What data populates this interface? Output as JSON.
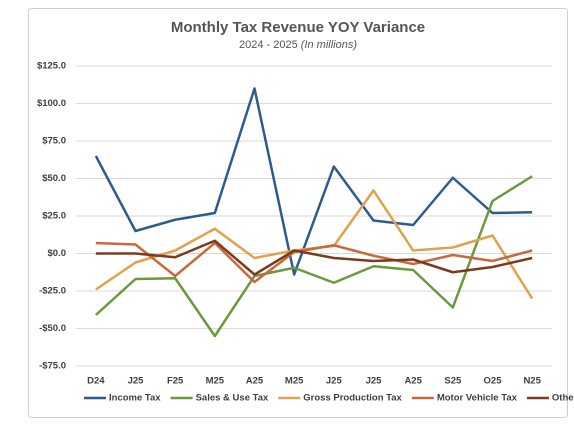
{
  "chart_data": {
    "type": "line",
    "title": "Monthly Tax Revenue YOY Variance",
    "subtitle": "2024 - 2025",
    "subtitle_note": "(In millions)",
    "categories": [
      "D24",
      "J25",
      "F25",
      "M25",
      "A25",
      "M25",
      "J25",
      "J25",
      "A25",
      "S25",
      "O25",
      "N25"
    ],
    "series": [
      {
        "name": "Income Tax",
        "color": "#2e5b8f",
        "values": [
          65,
          15,
          22.5,
          27,
          110,
          -14,
          58,
          22,
          19,
          50.5,
          27,
          27.5
        ]
      },
      {
        "name": "Sales & Use Tax",
        "color": "#6a9a3d",
        "values": [
          -41,
          -17,
          -16.5,
          -55,
          -15,
          -9.5,
          -19.5,
          -8.5,
          -11,
          -36,
          35,
          51.5
        ]
      },
      {
        "name": "Gross Production Tax",
        "color": "#e0a24a",
        "values": [
          -24,
          -6,
          2,
          16.5,
          -3,
          2,
          5,
          42,
          2,
          4,
          12,
          -30
        ]
      },
      {
        "name": "Motor Vehicle Tax",
        "color": "#c8693a",
        "values": [
          7,
          6,
          -15,
          7,
          -19,
          1,
          5.5,
          -1.5,
          -7,
          -1,
          -5,
          2
        ]
      },
      {
        "name": "Other",
        "color": "#7a3b1f",
        "values": [
          0,
          0,
          -2.5,
          8.5,
          -14,
          2,
          -3,
          -5,
          -4,
          -12.5,
          -9,
          -3
        ]
      }
    ],
    "ylim": [
      -75,
      125
    ],
    "yticks": [
      {
        "value": -75,
        "label": "-$75.0"
      },
      {
        "value": -50,
        "label": "-$50.0"
      },
      {
        "value": -25,
        "label": "-$25.0"
      },
      {
        "value": 0,
        "label": "$0.0"
      },
      {
        "value": 25,
        "label": "$25.0"
      },
      {
        "value": 50,
        "label": "$50.0"
      },
      {
        "value": 75,
        "label": "$75.0"
      },
      {
        "value": 100,
        "label": "$100.0"
      },
      {
        "value": 125,
        "label": "$125.0"
      }
    ],
    "grid": true
  }
}
